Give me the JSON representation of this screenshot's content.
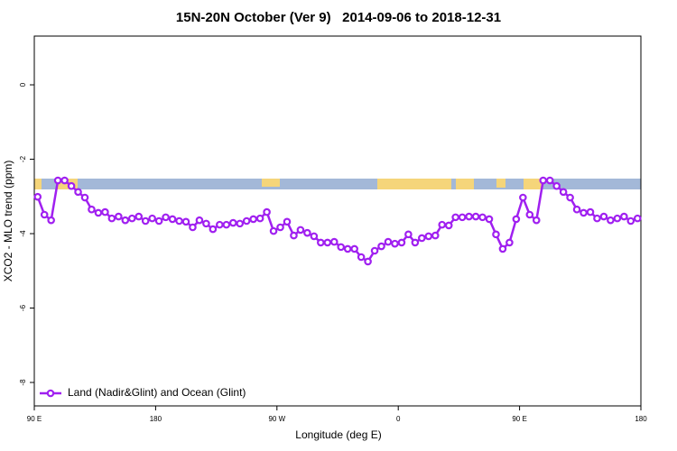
{
  "chart_data": {
    "type": "line",
    "title": "15N-20N October (Ver 9)   2014-09-06 to 2018-12-31",
    "x_label": "Longitude (deg E)",
    "y_label": "XCO2 - MLO trend (ppm)",
    "xlim": [
      90,
      540
    ],
    "ylim": [
      -8.63,
      1.31
    ],
    "xticks": [
      {
        "value": 90,
        "label": "90 E"
      },
      180,
      {
        "value": 270,
        "label": "90 W"
      },
      {
        "value": 360,
        "label": "0"
      },
      {
        "value": 450,
        "label": "90 E"
      },
      {
        "value": 540,
        "label": "180"
      }
    ],
    "yticks": [
      0,
      -2,
      -4,
      -6,
      -8
    ],
    "legend": "bottomleft",
    "x": [
      92.5,
      97.5,
      102.5,
      107.5,
      112.5,
      117.5,
      122.5,
      127.5,
      132.5,
      137.5,
      142.5,
      147.5,
      152.5,
      157.5,
      162.5,
      167.5,
      172.5,
      177.5,
      182.5,
      187.5,
      192.5,
      197.5,
      202.5,
      207.5,
      212.5,
      217.5,
      222.5,
      227.5,
      232.5,
      237.5,
      242.5,
      247.5,
      252.5,
      257.5,
      262.5,
      267.5,
      272.5,
      277.5,
      282.5,
      287.5,
      292.5,
      297.5,
      302.5,
      307.5,
      312.5,
      317.5,
      322.5,
      327.5,
      332.5,
      337.5,
      342.5,
      347.5,
      352.5,
      357.5,
      362.5,
      367.5,
      372.5,
      377.5,
      382.5,
      387.5,
      392.5,
      397.5,
      402.5,
      407.5,
      412.5,
      417.5,
      422.5,
      427.5,
      432.5,
      437.5,
      442.5,
      447.5,
      452.5,
      457.5,
      462.5,
      467.5,
      472.5,
      477.5,
      482.5,
      487.5,
      492.5,
      497.5,
      502.5,
      507.5,
      512.5,
      517.5,
      522.5,
      527.5,
      532.5,
      537.5
    ],
    "series": [
      {
        "name": "Land (Nadir&Glint) and Ocean (Glint)",
        "color": "#a020f0",
        "values": [
          -3.01,
          -3.49,
          -3.64,
          -2.57,
          -2.57,
          -2.72,
          -2.88,
          -3.03,
          -3.35,
          -3.44,
          -3.42,
          -3.59,
          -3.54,
          -3.64,
          -3.59,
          -3.54,
          -3.66,
          -3.59,
          -3.66,
          -3.56,
          -3.61,
          -3.66,
          -3.68,
          -3.83,
          -3.64,
          -3.73,
          -3.88,
          -3.76,
          -3.76,
          -3.71,
          -3.73,
          -3.66,
          -3.61,
          -3.59,
          -3.42,
          -3.93,
          -3.83,
          -3.68,
          -4.05,
          -3.9,
          -3.98,
          -4.07,
          -4.24,
          -4.24,
          -4.22,
          -4.36,
          -4.41,
          -4.41,
          -4.63,
          -4.75,
          -4.46,
          -4.34,
          -4.22,
          -4.27,
          -4.24,
          -4.02,
          -4.24,
          -4.12,
          -4.07,
          -4.05,
          -3.76,
          -3.78,
          -3.56,
          -3.56,
          -3.54,
          -3.54,
          -3.56,
          -3.61,
          -4.02,
          -4.41,
          -4.24,
          -3.61,
          -3.03,
          -3.49,
          -3.64,
          -2.57,
          -2.57,
          -2.72,
          -2.88,
          -3.03,
          -3.35,
          -3.44,
          -3.42,
          -3.59,
          -3.54,
          -3.64,
          -3.59,
          -3.54,
          -3.66,
          -3.59
        ]
      }
    ]
  }
}
